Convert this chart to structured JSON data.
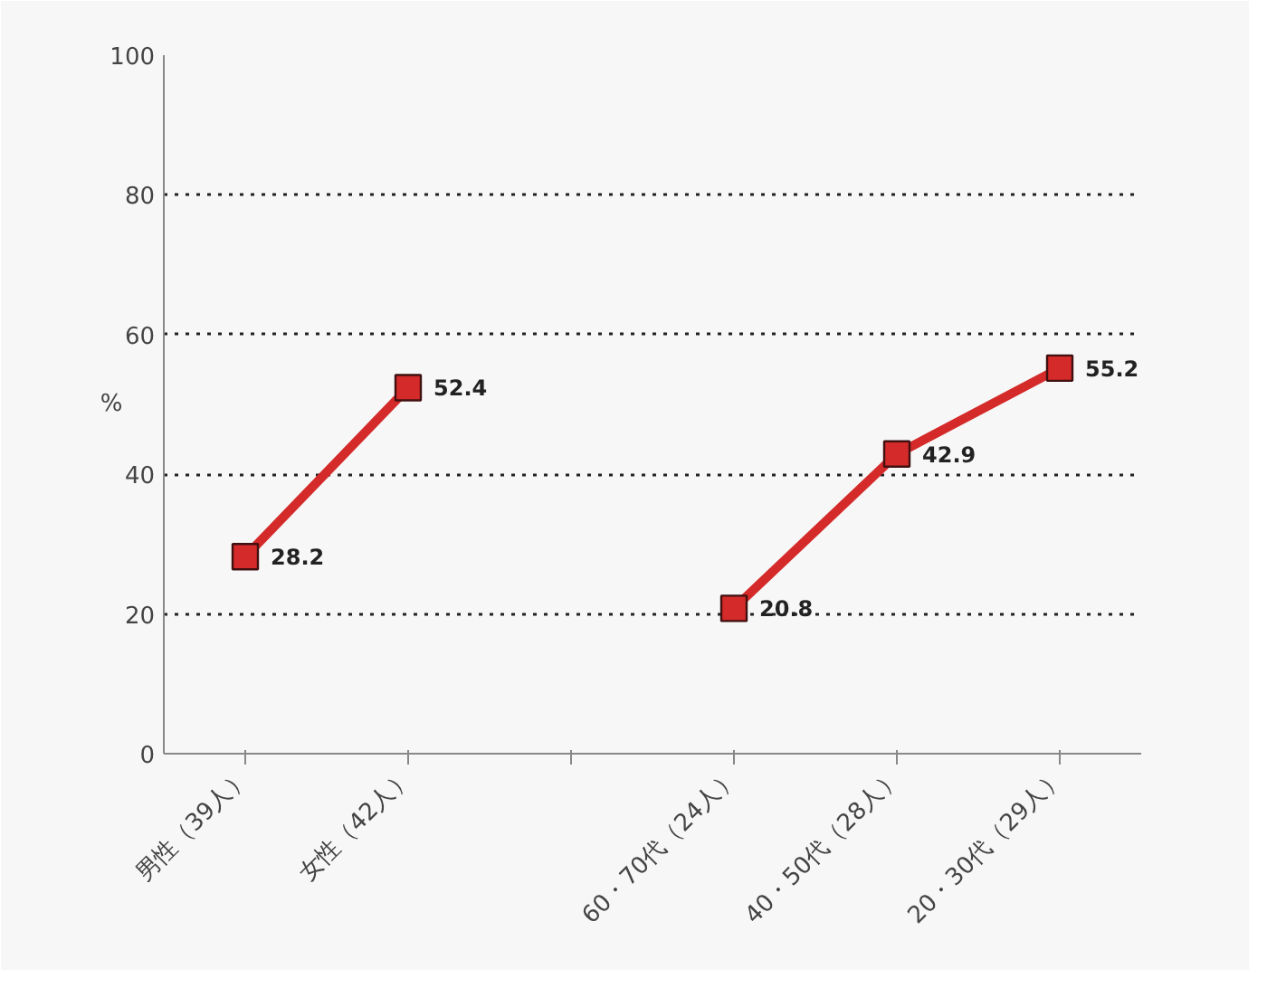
{
  "chart_data": {
    "type": "line",
    "ylabel": "%",
    "categories": [
      "男性（39人）",
      "女性（42人）",
      null,
      "60・70代（24人）",
      "40・50代（28人）",
      "20・30代（29人）"
    ],
    "series": [
      {
        "color": "#d42a2a",
        "values": [
          28.2,
          52.4,
          null,
          20.8,
          42.9,
          55.2
        ]
      }
    ],
    "ylim": [
      0,
      100
    ],
    "yticks": [
      0,
      20,
      40,
      60,
      80,
      100
    ],
    "grid": "y",
    "marker": "square",
    "line_style": "solid",
    "data_labels": true
  }
}
